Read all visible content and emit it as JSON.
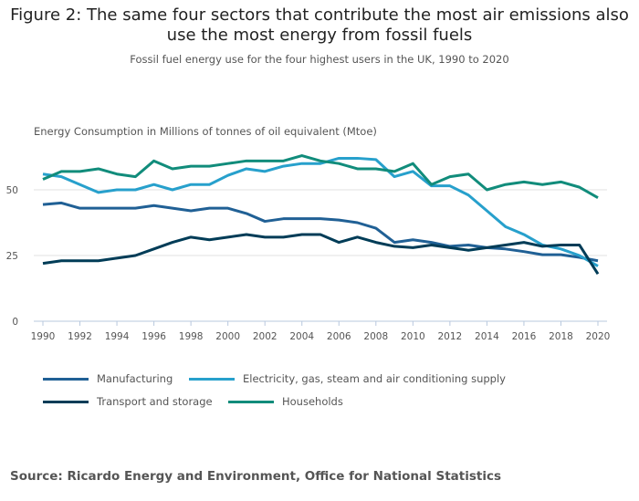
{
  "title": "Figure 2: The same four sectors that contribute the most air emissions also use the most energy from fossil fuels",
  "subtitle": "Fossil fuel energy use for the four highest users in the UK, 1990 to 2020",
  "source": "Source: Ricardo Energy and Environment, Office for National Statistics",
  "chart_data": {
    "type": "line",
    "ylabel": "Energy Consumption in Millions of tonnes of oil equivalent (Mtoe)",
    "ylim": [
      0,
      65
    ],
    "yticks": [
      0,
      25,
      50
    ],
    "xlim": [
      1990,
      2020
    ],
    "xticks": [
      1990,
      1992,
      1994,
      1996,
      1998,
      2000,
      2002,
      2004,
      2006,
      2008,
      2010,
      2012,
      2014,
      2016,
      2018,
      2020
    ],
    "grid": true,
    "legend": "bottom",
    "x": [
      1990,
      1991,
      1992,
      1993,
      1994,
      1995,
      1996,
      1997,
      1998,
      1999,
      2000,
      2001,
      2002,
      2003,
      2004,
      2005,
      2006,
      2007,
      2008,
      2009,
      2010,
      2011,
      2012,
      2013,
      2014,
      2015,
      2016,
      2017,
      2018,
      2019,
      2020
    ],
    "series": [
      {
        "name": "Manufacturing",
        "color": "#206095",
        "values": [
          44.4,
          45,
          43,
          43,
          43,
          43,
          44,
          43,
          42,
          43,
          43,
          41,
          38,
          39,
          39,
          39,
          38.5,
          37.5,
          35.4,
          30,
          31,
          30,
          28.5,
          29,
          28,
          27.5,
          26.5,
          25.3,
          25.3,
          24.3,
          23
        ]
      },
      {
        "name": "Electricity, gas, steam and air conditioning supply",
        "color": "#27a0cc",
        "values": [
          56,
          55,
          52,
          49,
          50,
          50,
          52,
          50,
          52,
          52,
          55.5,
          58,
          57,
          59,
          60,
          60,
          62,
          62,
          61.5,
          55,
          57,
          51.5,
          51.5,
          48,
          42,
          36,
          33,
          29,
          27.5,
          25,
          21
        ]
      },
      {
        "name": "Transport and storage",
        "color": "#003c57",
        "values": [
          22,
          23,
          23,
          23,
          24,
          25,
          27.5,
          30,
          32,
          31,
          32,
          33,
          32,
          32,
          33,
          33,
          30,
          32,
          30,
          28.5,
          28,
          29,
          28,
          27,
          28,
          29,
          30,
          28.5,
          29,
          29,
          18
        ]
      },
      {
        "name": "Households",
        "color": "#118c7b",
        "values": [
          54,
          57,
          57,
          58,
          56,
          55,
          61,
          58,
          59,
          59,
          60,
          61,
          61,
          61,
          63,
          61,
          60,
          58,
          58,
          57,
          60,
          52,
          55,
          56,
          50,
          52,
          53,
          52,
          53,
          51,
          47
        ]
      }
    ]
  }
}
